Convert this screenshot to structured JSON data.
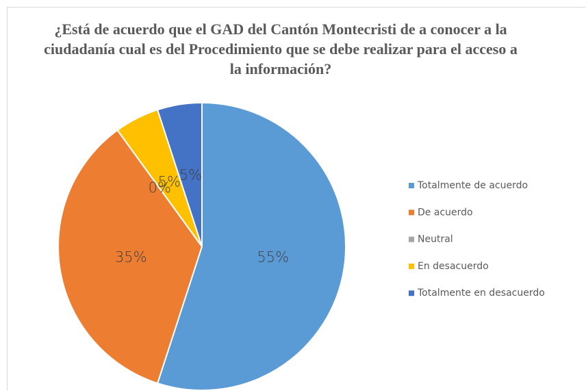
{
  "chart_data": {
    "type": "pie",
    "title": "¿Está de acuerdo que el GAD del Cantón Montecristi de a conocer a la ciudadanía cual es del Procedimiento que se debe realizar para el acceso a la información?",
    "categories": [
      "Totalmente de acuerdo",
      "De acuerdo",
      "Neutral",
      "En desacuerdo",
      "Totalmente en desacuerdo"
    ],
    "values": [
      55,
      35,
      0,
      5,
      5
    ],
    "value_labels": [
      "55%",
      "35%",
      "0%",
      "5%",
      "5%"
    ],
    "colors": [
      "#5b9bd5",
      "#ed7d31",
      "#a5a5a5",
      "#ffc000",
      "#4472c4"
    ],
    "legend": "right"
  }
}
